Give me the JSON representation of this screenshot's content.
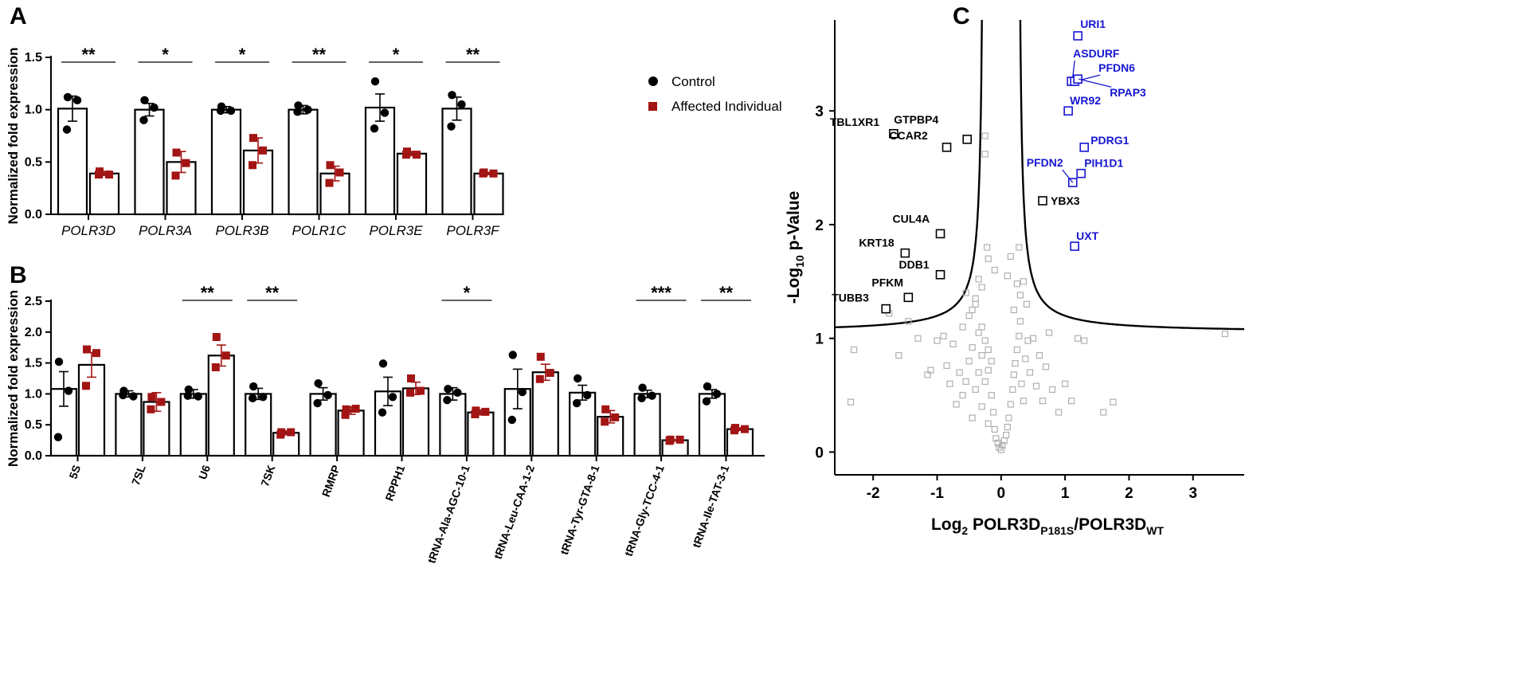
{
  "panel_letters": {
    "a": "A",
    "b": "B",
    "c": "C"
  },
  "colors": {
    "control": "#000000",
    "affected": "#a31414",
    "highlight": "#1616d2",
    "background_point": "#b0b0b0"
  },
  "legend": {
    "control": "Control",
    "affected": "Affected Individual"
  },
  "chart_data": [
    {
      "id": "A",
      "type": "bar",
      "ylabel": "Normalized fold expression",
      "ylim": [
        0,
        1.5
      ],
      "yticks": [
        "0.0",
        "0.5",
        "1.0",
        "1.5"
      ],
      "categories": [
        "POLR3D",
        "POLR3A",
        "POLR3B",
        "POLR1C",
        "POLR3E",
        "POLR3F"
      ],
      "series": [
        {
          "name": "Control",
          "values": [
            1.01,
            1.0,
            1.0,
            1.0,
            1.02,
            1.01
          ],
          "sem": [
            0.12,
            0.06,
            0.03,
            0.04,
            0.13,
            0.11
          ],
          "points": [
            [
              1.12,
              1.09,
              0.81
            ],
            [
              1.09,
              1.02,
              0.9
            ],
            [
              1.03,
              0.99,
              0.99
            ],
            [
              1.04,
              1.0,
              0.98
            ],
            [
              1.27,
              0.97,
              0.82
            ],
            [
              1.14,
              1.05,
              0.84
            ]
          ]
        },
        {
          "name": "Affected Individual",
          "values": [
            0.39,
            0.5,
            0.61,
            0.39,
            0.58,
            0.39
          ],
          "sem": [
            0.02,
            0.1,
            0.12,
            0.07,
            0.02,
            0.01
          ],
          "points": [
            [
              0.41,
              0.38,
              0.38
            ],
            [
              0.59,
              0.49,
              0.37
            ],
            [
              0.73,
              0.61,
              0.47
            ],
            [
              0.47,
              0.4,
              0.3
            ],
            [
              0.6,
              0.57,
              0.57
            ],
            [
              0.4,
              0.39,
              0.39
            ]
          ]
        }
      ],
      "significance": [
        "**",
        "*",
        "*",
        "**",
        "*",
        "**"
      ]
    },
    {
      "id": "B",
      "type": "bar",
      "ylabel": "Normalized fold expression",
      "ylim": [
        0,
        2.5
      ],
      "yticks": [
        "0.0",
        "0.5",
        "1.0",
        "1.5",
        "2.0",
        "2.5"
      ],
      "categories": [
        "5S",
        "7SL",
        "U6",
        "7SK",
        "RMRP",
        "RPPH1",
        "tRNA-Ala-AGC-10-1",
        "tRNA-Leu-CAA-1-2",
        "tRNA-Tyr-GTA-8-1",
        "tRNA-Gly-TCC-4-1",
        "tRNA-Ile-TAT-3-1"
      ],
      "series": [
        {
          "name": "Control",
          "values": [
            1.08,
            1.0,
            1.0,
            1.0,
            1.0,
            1.04,
            1.0,
            1.08,
            1.02,
            1.0,
            1.0
          ],
          "sem": [
            0.28,
            0.05,
            0.07,
            0.09,
            0.1,
            0.23,
            0.1,
            0.32,
            0.12,
            0.06,
            0.07
          ],
          "points": [
            [
              1.52,
              1.05,
              0.3
            ],
            [
              1.05,
              0.96,
              0.98
            ],
            [
              1.07,
              0.96,
              0.97
            ],
            [
              1.12,
              0.95,
              0.93
            ],
            [
              1.17,
              0.98,
              0.85
            ],
            [
              1.49,
              0.95,
              0.7
            ],
            [
              1.08,
              1.02,
              0.9
            ],
            [
              1.63,
              1.03,
              0.58
            ],
            [
              1.25,
              0.98,
              0.85
            ],
            [
              1.1,
              0.97,
              0.93
            ],
            [
              1.12,
              1.0,
              0.88
            ]
          ]
        },
        {
          "name": "Affected Individual",
          "values": [
            1.47,
            0.87,
            1.62,
            0.37,
            0.73,
            1.09,
            0.7,
            1.35,
            0.63,
            0.25,
            0.43
          ],
          "sem": [
            0.2,
            0.15,
            0.17,
            0.03,
            0.06,
            0.1,
            0.04,
            0.13,
            0.1,
            0.01,
            0.02
          ],
          "points": [
            [
              1.72,
              1.66,
              1.13
            ],
            [
              0.95,
              0.87,
              0.75
            ],
            [
              1.92,
              1.62,
              1.43
            ],
            [
              0.38,
              0.38,
              0.34
            ],
            [
              0.75,
              0.76,
              0.66
            ],
            [
              1.25,
              1.05,
              1.02
            ],
            [
              0.73,
              0.71,
              0.67
            ],
            [
              1.6,
              1.34,
              1.24
            ],
            [
              0.75,
              0.62,
              0.55
            ],
            [
              0.26,
              0.26,
              0.24
            ],
            [
              0.45,
              0.43,
              0.41
            ]
          ]
        }
      ],
      "significance": [
        "",
        "",
        "**",
        "**",
        "",
        "",
        "*",
        "",
        "",
        "***",
        "**"
      ]
    },
    {
      "id": "C",
      "type": "scatter",
      "xlabel_prefix": "Log",
      "xlabel_sub1": "2",
      "xlabel_main": " POLR3D",
      "xlabel_sub2": "P181S",
      "xlabel_rest": "/POLR3D",
      "xlabel_sub3": "WT",
      "ylabel_prefix": "-Log",
      "ylabel_sub": "10",
      "ylabel_rest": " p-Value",
      "xlim": [
        -2.6,
        3.8
      ],
      "ylim": [
        -0.2,
        3.8
      ],
      "xticks": [
        "-2",
        "-1",
        "0",
        "1",
        "2",
        "3"
      ],
      "yticks": [
        "0",
        "1",
        "2",
        "3"
      ],
      "curve_c": 0.26,
      "curve_k": 1.1,
      "labeled_points": [
        {
          "name": "URI1",
          "x": 1.2,
          "y": 3.66,
          "color": "#1616d2"
        },
        {
          "name": "ASDURF",
          "x": 1.1,
          "y": 3.26,
          "color": "#1616d2"
        },
        {
          "name": "PFDN6",
          "x": 1.15,
          "y": 3.26,
          "color": "#1616d2"
        },
        {
          "name": "RPAP3",
          "x": 1.2,
          "y": 3.28,
          "color": "#1616d2"
        },
        {
          "name": "WR92",
          "x": 1.05,
          "y": 3.0,
          "color": "#1616d2"
        },
        {
          "name": "PDRG1",
          "x": 1.3,
          "y": 2.68,
          "color": "#1616d2"
        },
        {
          "name": "PIH1D1",
          "x": 1.25,
          "y": 2.45,
          "color": "#1616d2"
        },
        {
          "name": "PFDN2",
          "x": 1.12,
          "y": 2.37,
          "color": "#1616d2"
        },
        {
          "name": "UXT",
          "x": 1.15,
          "y": 1.81,
          "color": "#1616d2"
        },
        {
          "name": "YBX3",
          "x": 0.65,
          "y": 2.21,
          "color": "#000000"
        },
        {
          "name": "TBL1XR1",
          "x": -1.68,
          "y": 2.8,
          "color": "#000000"
        },
        {
          "name": "GTPBP4",
          "x": -0.53,
          "y": 2.75,
          "color": "#000000"
        },
        {
          "name": "CCAR2",
          "x": -0.85,
          "y": 2.68,
          "color": "#000000"
        },
        {
          "name": "CUL4A",
          "x": -0.95,
          "y": 1.92,
          "color": "#000000"
        },
        {
          "name": "KRT18",
          "x": -1.5,
          "y": 1.75,
          "color": "#000000"
        },
        {
          "name": "DDB1",
          "x": -0.95,
          "y": 1.56,
          "color": "#000000"
        },
        {
          "name": "PFKM",
          "x": -1.45,
          "y": 1.36,
          "color": "#000000"
        },
        {
          "name": "TUBB3",
          "x": -1.8,
          "y": 1.26,
          "color": "#000000"
        }
      ],
      "background_points": [
        [
          -2.3,
          0.9
        ],
        [
          -2.35,
          0.44
        ],
        [
          -1.75,
          1.22
        ],
        [
          -1.6,
          0.85
        ],
        [
          -1.45,
          1.15
        ],
        [
          -1.3,
          1.0
        ],
        [
          -1.15,
          0.68
        ],
        [
          -1.1,
          0.72
        ],
        [
          -1.0,
          0.98
        ],
        [
          -0.9,
          1.02
        ],
        [
          -0.85,
          0.76
        ],
        [
          -0.8,
          0.6
        ],
        [
          -0.75,
          0.95
        ],
        [
          -0.7,
          0.42
        ],
        [
          -0.65,
          0.7
        ],
        [
          -0.6,
          1.1
        ],
        [
          -0.6,
          0.5
        ],
        [
          -0.55,
          0.62
        ],
        [
          -0.5,
          0.8
        ],
        [
          -0.5,
          1.2
        ],
        [
          -0.45,
          0.92
        ],
        [
          -0.45,
          0.3
        ],
        [
          -0.4,
          1.35
        ],
        [
          -0.4,
          0.55
        ],
        [
          -0.35,
          1.05
        ],
        [
          -0.35,
          0.7
        ],
        [
          -0.3,
          1.1
        ],
        [
          -0.3,
          0.85
        ],
        [
          -0.3,
          0.4
        ],
        [
          -0.25,
          0.98
        ],
        [
          -0.25,
          0.62
        ],
        [
          -0.2,
          0.9
        ],
        [
          -0.2,
          0.72
        ],
        [
          -0.2,
          0.25
        ],
        [
          -0.15,
          0.8
        ],
        [
          -0.15,
          0.5
        ],
        [
          -0.12,
          0.35
        ],
        [
          -0.1,
          0.2
        ],
        [
          -0.08,
          0.12
        ],
        [
          -0.05,
          0.08
        ],
        [
          -0.03,
          0.04
        ],
        [
          0.0,
          0.02
        ],
        [
          0.02,
          0.06
        ],
        [
          0.05,
          0.1
        ],
        [
          0.08,
          0.15
        ],
        [
          0.1,
          0.22
        ],
        [
          0.12,
          0.3
        ],
        [
          0.15,
          0.42
        ],
        [
          0.18,
          0.55
        ],
        [
          0.2,
          0.68
        ],
        [
          0.22,
          0.78
        ],
        [
          0.25,
          0.9
        ],
        [
          0.28,
          1.02
        ],
        [
          0.3,
          1.15
        ],
        [
          0.32,
          0.6
        ],
        [
          0.35,
          0.45
        ],
        [
          0.38,
          0.82
        ],
        [
          0.4,
          1.3
        ],
        [
          0.42,
          0.98
        ],
        [
          0.45,
          0.7
        ],
        [
          0.5,
          1.0
        ],
        [
          0.55,
          0.58
        ],
        [
          0.6,
          0.85
        ],
        [
          0.65,
          0.45
        ],
        [
          0.7,
          0.75
        ],
        [
          0.75,
          1.05
        ],
        [
          0.8,
          0.55
        ],
        [
          0.9,
          0.35
        ],
        [
          1.0,
          0.6
        ],
        [
          1.1,
          0.45
        ],
        [
          1.2,
          1.0
        ],
        [
          1.3,
          0.98
        ],
        [
          1.6,
          0.35
        ],
        [
          1.75,
          0.44
        ],
        [
          3.5,
          1.04
        ],
        [
          -0.25,
          2.78
        ],
        [
          -0.25,
          2.62
        ],
        [
          -0.2,
          1.7
        ],
        [
          -0.22,
          1.8
        ],
        [
          -0.1,
          1.6
        ],
        [
          0.1,
          1.55
        ],
        [
          0.15,
          1.72
        ],
        [
          0.25,
          1.48
        ],
        [
          0.3,
          1.38
        ],
        [
          -0.3,
          1.45
        ],
        [
          -0.35,
          1.52
        ],
        [
          -0.45,
          1.25
        ],
        [
          -0.55,
          1.4
        ],
        [
          -0.4,
          1.3
        ],
        [
          0.2,
          1.25
        ],
        [
          0.28,
          1.8
        ],
        [
          0.35,
          1.5
        ]
      ]
    }
  ]
}
